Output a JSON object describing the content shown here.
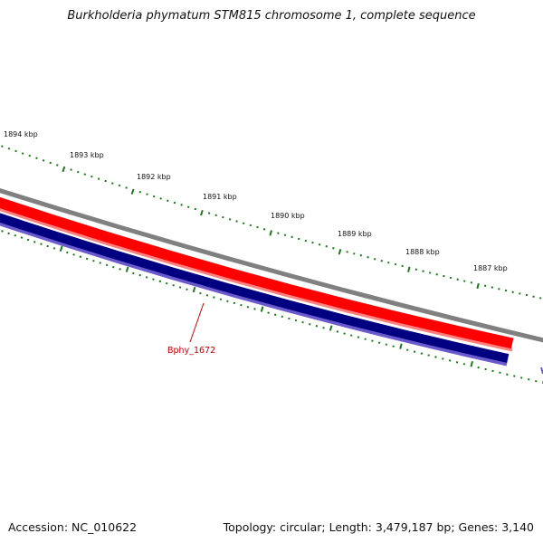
{
  "title": "Burkholderia phymatum STM815 chromosome 1, complete sequence",
  "accession": "Accession: NC_010622",
  "summary": "Topology: circular; Length: 3,479,187 bp; Genes: 3,140",
  "gene_label": "Bphy_1672",
  "kbp_labels": [
    "1894 kbp",
    "1893 kbp",
    "1892 kbp",
    "1891 kbp",
    "1890 kbp",
    "1889 kbp",
    "1888 kbp",
    "1887 kbp"
  ],
  "colors": {
    "backbone": "#808080",
    "forward_cds": "#ff0000",
    "forward_cds_highlight": "#ff8080",
    "reverse_cds": "#000080",
    "reverse_cds_edge": "#6a5acd",
    "tick": "#1a7a1a",
    "gene_label": "#cc0000"
  }
}
